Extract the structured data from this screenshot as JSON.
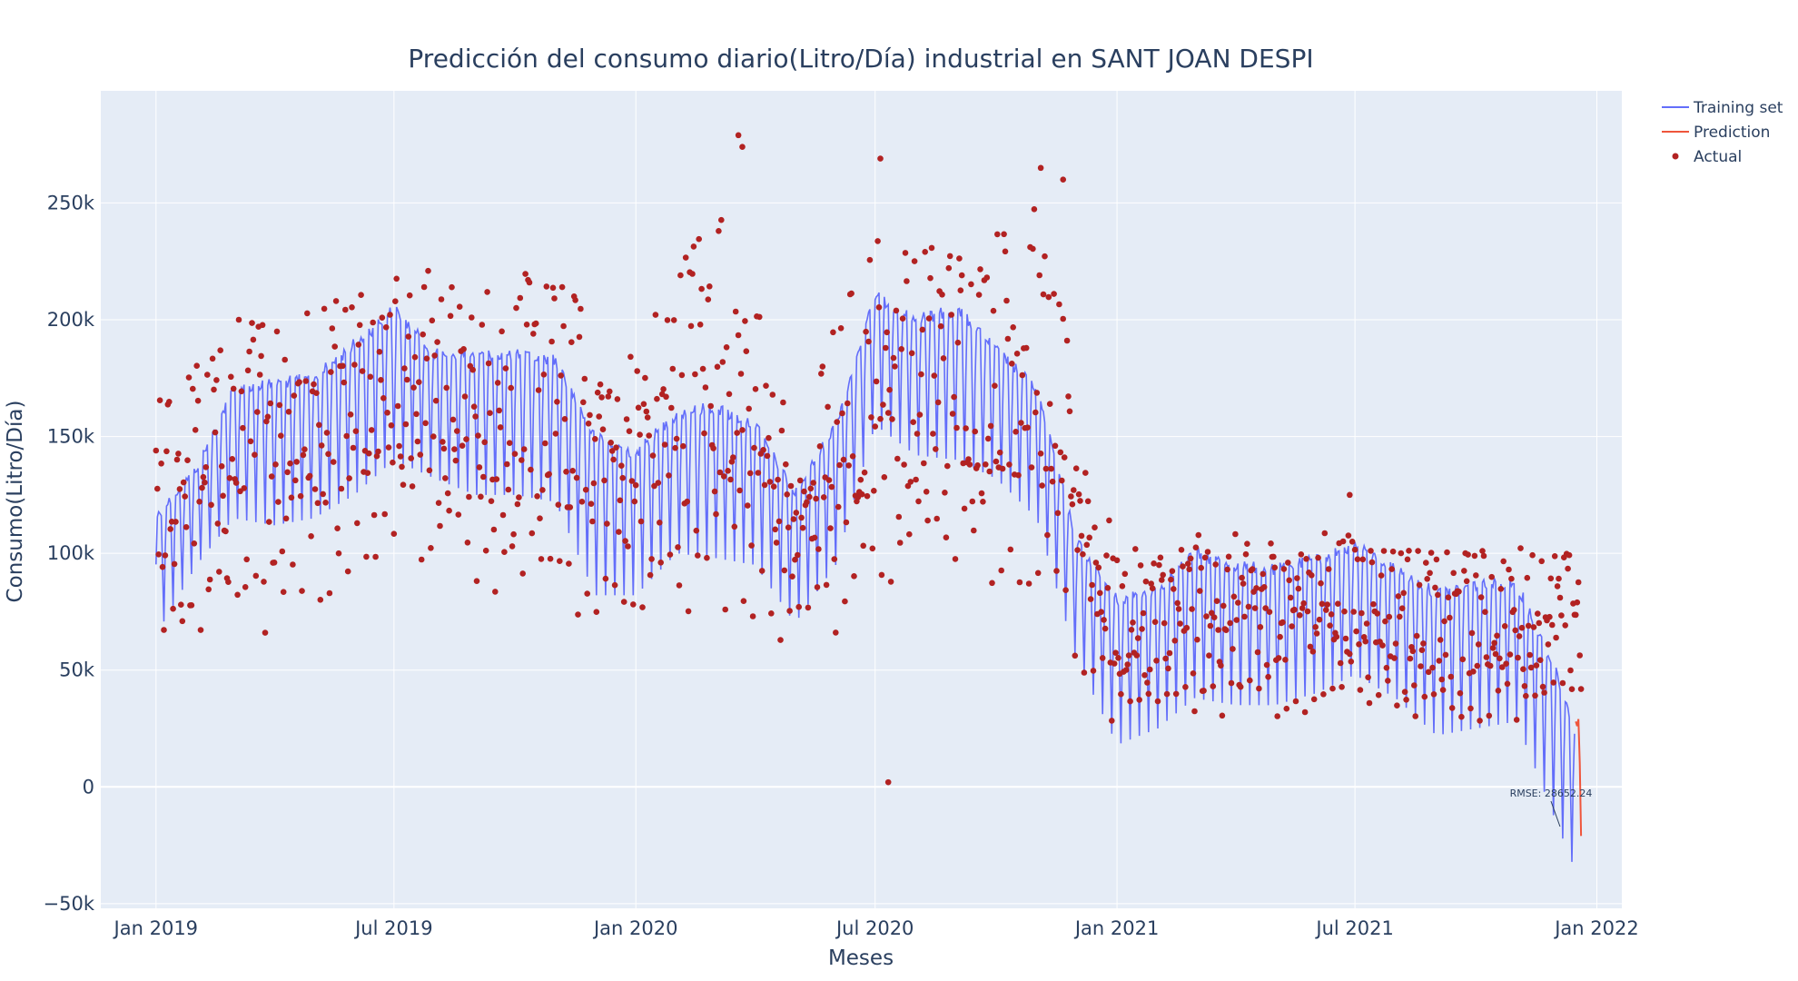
{
  "chart_data": {
    "type": "line",
    "title": "Predicción del consumo diario(Litro/Día) industrial en SANT JOAN DESPI",
    "xlabel": "Meses",
    "ylabel": "Consumo(Litro/Día)",
    "x_range": [
      "2018-11-20",
      "2022-01-20"
    ],
    "ylim": [
      -52000,
      298000
    ],
    "x_ticks": [
      {
        "date": "2019-01-01",
        "label": "Jan 2019"
      },
      {
        "date": "2019-07-01",
        "label": "Jul 2019"
      },
      {
        "date": "2020-01-01",
        "label": "Jan 2020"
      },
      {
        "date": "2020-07-01",
        "label": "Jul 2020"
      },
      {
        "date": "2021-01-01",
        "label": "Jan 2021"
      },
      {
        "date": "2021-07-01",
        "label": "Jul 2021"
      },
      {
        "date": "2022-01-01",
        "label": "Jan 2022"
      }
    ],
    "y_ticks": [
      {
        "value": -50000,
        "label": "−50k"
      },
      {
        "value": 0,
        "label": "0"
      },
      {
        "value": 50000,
        "label": "50k"
      },
      {
        "value": 100000,
        "label": "100k"
      },
      {
        "value": 150000,
        "label": "150k"
      },
      {
        "value": 200000,
        "label": "200k"
      },
      {
        "value": 250000,
        "label": "250k"
      }
    ],
    "grid": true,
    "legend_position": "top-right",
    "series": [
      {
        "name": "Training set",
        "kind": "line",
        "color": "#636efa",
        "weekly_pattern": "five weekday values near the upper envelope, two weekend values near the lower envelope",
        "start": "2019-01-01",
        "end": "2021-12-15",
        "upper_envelope": [
          {
            "date": "2019-01-01",
            "value": 120000
          },
          {
            "date": "2019-02-01",
            "value": 140000
          },
          {
            "date": "2019-03-01",
            "value": 175000
          },
          {
            "date": "2019-04-01",
            "value": 178000
          },
          {
            "date": "2019-05-01",
            "value": 180000
          },
          {
            "date": "2019-06-01",
            "value": 195000
          },
          {
            "date": "2019-07-01",
            "value": 210000
          },
          {
            "date": "2019-08-01",
            "value": 190000
          },
          {
            "date": "2019-09-01",
            "value": 190000
          },
          {
            "date": "2019-10-01",
            "value": 190000
          },
          {
            "date": "2019-11-01",
            "value": 188000
          },
          {
            "date": "2019-12-01",
            "value": 155000
          },
          {
            "date": "2020-01-01",
            "value": 148000
          },
          {
            "date": "2020-02-01",
            "value": 165000
          },
          {
            "date": "2020-03-01",
            "value": 168000
          },
          {
            "date": "2020-04-01",
            "value": 160000
          },
          {
            "date": "2020-05-01",
            "value": 130000
          },
          {
            "date": "2020-06-01",
            "value": 160000
          },
          {
            "date": "2020-07-01",
            "value": 215000
          },
          {
            "date": "2020-08-01",
            "value": 205000
          },
          {
            "date": "2020-09-01",
            "value": 210000
          },
          {
            "date": "2020-10-01",
            "value": 192000
          },
          {
            "date": "2020-11-01",
            "value": 175000
          },
          {
            "date": "2020-12-01",
            "value": 110000
          },
          {
            "date": "2021-01-01",
            "value": 85000
          },
          {
            "date": "2021-02-01",
            "value": 90000
          },
          {
            "date": "2021-03-01",
            "value": 105000
          },
          {
            "date": "2021-04-01",
            "value": 100000
          },
          {
            "date": "2021-05-01",
            "value": 98000
          },
          {
            "date": "2021-06-01",
            "value": 102000
          },
          {
            "date": "2021-07-01",
            "value": 108000
          },
          {
            "date": "2021-08-01",
            "value": 98000
          },
          {
            "date": "2021-09-01",
            "value": 88000
          },
          {
            "date": "2021-10-01",
            "value": 92000
          },
          {
            "date": "2021-11-01",
            "value": 92000
          },
          {
            "date": "2021-12-01",
            "value": 55000
          },
          {
            "date": "2021-12-15",
            "value": 30000
          }
        ],
        "lower_envelope": [
          {
            "date": "2019-01-01",
            "value": 65000
          },
          {
            "date": "2019-02-01",
            "value": 95000
          },
          {
            "date": "2019-03-01",
            "value": 115000
          },
          {
            "date": "2019-04-01",
            "value": 112000
          },
          {
            "date": "2019-05-01",
            "value": 115000
          },
          {
            "date": "2019-06-01",
            "value": 125000
          },
          {
            "date": "2019-07-01",
            "value": 140000
          },
          {
            "date": "2019-08-01",
            "value": 132000
          },
          {
            "date": "2019-09-01",
            "value": 125000
          },
          {
            "date": "2019-10-01",
            "value": 125000
          },
          {
            "date": "2019-11-01",
            "value": 122000
          },
          {
            "date": "2019-12-01",
            "value": 82000
          },
          {
            "date": "2020-01-01",
            "value": 82000
          },
          {
            "date": "2020-02-01",
            "value": 100000
          },
          {
            "date": "2020-03-01",
            "value": 98000
          },
          {
            "date": "2020-04-01",
            "value": 95000
          },
          {
            "date": "2020-05-01",
            "value": 70000
          },
          {
            "date": "2020-06-01",
            "value": 95000
          },
          {
            "date": "2020-07-01",
            "value": 155000
          },
          {
            "date": "2020-08-01",
            "value": 142000
          },
          {
            "date": "2020-09-01",
            "value": 140000
          },
          {
            "date": "2020-10-01",
            "value": 132000
          },
          {
            "date": "2020-11-01",
            "value": 115000
          },
          {
            "date": "2020-12-01",
            "value": 55000
          },
          {
            "date": "2021-01-01",
            "value": 18000
          },
          {
            "date": "2021-02-01",
            "value": 25000
          },
          {
            "date": "2021-03-01",
            "value": 38000
          },
          {
            "date": "2021-04-01",
            "value": 35000
          },
          {
            "date": "2021-05-01",
            "value": 35000
          },
          {
            "date": "2021-06-01",
            "value": 40000
          },
          {
            "date": "2021-07-01",
            "value": 48000
          },
          {
            "date": "2021-08-01",
            "value": 38000
          },
          {
            "date": "2021-09-01",
            "value": 22000
          },
          {
            "date": "2021-10-01",
            "value": 25000
          },
          {
            "date": "2021-11-01",
            "value": 28000
          },
          {
            "date": "2021-12-01",
            "value": -15000
          },
          {
            "date": "2021-12-15",
            "value": -35000
          }
        ]
      },
      {
        "name": "Prediction",
        "kind": "line",
        "color": "#ef553b",
        "points": [
          {
            "date": "2021-12-16",
            "value": 28000
          },
          {
            "date": "2021-12-17",
            "value": 26000
          },
          {
            "date": "2021-12-18",
            "value": 29000
          },
          {
            "date": "2021-12-19",
            "value": 10000
          },
          {
            "date": "2021-12-20",
            "value": -21000
          }
        ]
      },
      {
        "name": "Actual",
        "kind": "scatter",
        "color": "#b22222",
        "start": "2019-01-01",
        "end": "2021-12-20",
        "envelope_high": [
          {
            "date": "2019-01-01",
            "value": 165000
          },
          {
            "date": "2019-03-01",
            "value": 205000
          },
          {
            "date": "2019-05-01",
            "value": 215000
          },
          {
            "date": "2019-07-01",
            "value": 225000
          },
          {
            "date": "2019-09-01",
            "value": 220000
          },
          {
            "date": "2019-11-01",
            "value": 220000
          },
          {
            "date": "2020-01-01",
            "value": 190000
          },
          {
            "date": "2020-03-01",
            "value": 260000
          },
          {
            "date": "2020-05-01",
            "value": 160000
          },
          {
            "date": "2020-07-01",
            "value": 240000
          },
          {
            "date": "2020-09-01",
            "value": 235000
          },
          {
            "date": "2020-11-01",
            "value": 250000
          },
          {
            "date": "2021-01-01",
            "value": 100000
          },
          {
            "date": "2021-03-01",
            "value": 108000
          },
          {
            "date": "2021-05-01",
            "value": 110000
          },
          {
            "date": "2021-07-01",
            "value": 112000
          },
          {
            "date": "2021-09-01",
            "value": 100000
          },
          {
            "date": "2021-11-01",
            "value": 105000
          },
          {
            "date": "2021-12-20",
            "value": 100000
          }
        ],
        "envelope_low": [
          {
            "date": "2019-01-01",
            "value": 52000
          },
          {
            "date": "2019-03-01",
            "value": 60000
          },
          {
            "date": "2019-05-01",
            "value": 75000
          },
          {
            "date": "2019-07-01",
            "value": 105000
          },
          {
            "date": "2019-09-01",
            "value": 78000
          },
          {
            "date": "2019-11-01",
            "value": 75000
          },
          {
            "date": "2020-01-01",
            "value": 62000
          },
          {
            "date": "2020-03-01",
            "value": 80000
          },
          {
            "date": "2020-05-01",
            "value": 48000
          },
          {
            "date": "2020-07-01",
            "value": 78000
          },
          {
            "date": "2020-09-01",
            "value": 92000
          },
          {
            "date": "2020-11-01",
            "value": 80000
          },
          {
            "date": "2021-01-01",
            "value": 22000
          },
          {
            "date": "2021-03-01",
            "value": 28000
          },
          {
            "date": "2021-05-01",
            "value": 30000
          },
          {
            "date": "2021-07-01",
            "value": 35000
          },
          {
            "date": "2021-09-01",
            "value": 25000
          },
          {
            "date": "2021-11-01",
            "value": 25000
          },
          {
            "date": "2021-12-20",
            "value": 40000
          }
        ],
        "outliers": [
          {
            "date": "2020-03-19",
            "value": 279000
          },
          {
            "date": "2020-03-22",
            "value": 274000
          },
          {
            "date": "2020-07-05",
            "value": 269000
          },
          {
            "date": "2020-11-04",
            "value": 265000
          },
          {
            "date": "2020-11-21",
            "value": 260000
          },
          {
            "date": "2020-07-11",
            "value": 2000
          },
          {
            "date": "2021-06-27",
            "value": 125000
          }
        ]
      }
    ],
    "annotations": [
      {
        "text": "RMSE: 28652.24",
        "date": "2021-12-04",
        "value": -17000,
        "arrow": true
      }
    ]
  }
}
